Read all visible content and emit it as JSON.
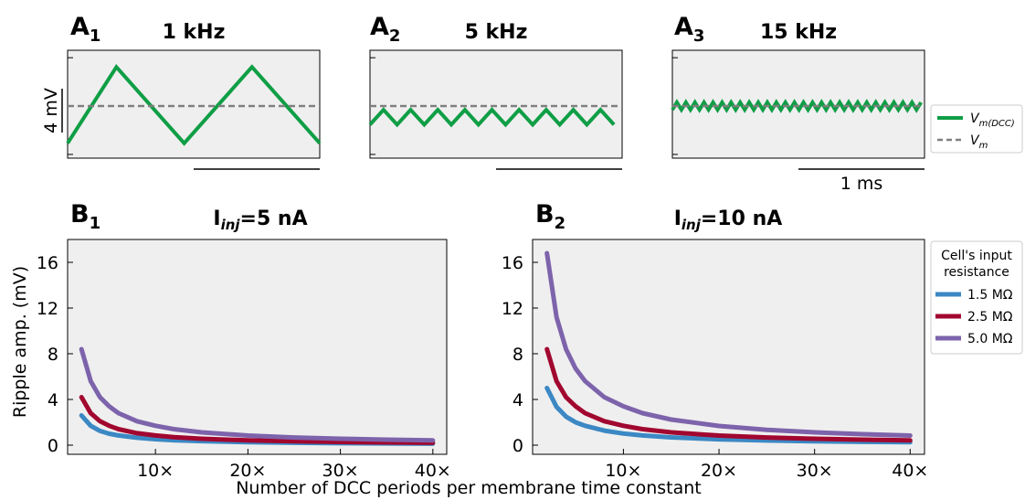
{
  "panels_a": [
    {
      "label": "A",
      "sub": "1",
      "title": "1 kHz"
    },
    {
      "label": "A",
      "sub": "2",
      "title": "5 kHz"
    },
    {
      "label": "A",
      "sub": "3",
      "title": "15 kHz"
    }
  ],
  "scale_bars": {
    "voltage": "4 mV",
    "time": "1 ms"
  },
  "legend_a": {
    "items": [
      {
        "main": "V",
        "sub": "m(DCC)",
        "color": "#0f9e45",
        "style": "solid"
      },
      {
        "main": "V",
        "sub": "m",
        "color": "#7f7f7f",
        "style": "dashed"
      }
    ]
  },
  "panels_b": [
    {
      "label": "B",
      "sub": "1",
      "title_main": "I",
      "title_sub": "inj",
      "title_rest": "=5 nA"
    },
    {
      "label": "B",
      "sub": "2",
      "title_main": "I",
      "title_sub": "inj",
      "title_rest": "=10 nA"
    }
  ],
  "legend_b": {
    "title_line1": "Cell's input",
    "title_line2": "resistance",
    "items": [
      {
        "label": "1.5 MΩ",
        "color": "#3b88c4"
      },
      {
        "label": "2.5 MΩ",
        "color": "#a1072f"
      },
      {
        "label": "5.0 MΩ",
        "color": "#7d63ab"
      }
    ]
  },
  "xlabel": "Number of DCC periods per membrane time constant",
  "ylabel": "Ripple amp. (mV)",
  "chart_data": [
    {
      "type": "line",
      "panel": "A1",
      "title": "1 kHz",
      "series": [
        {
          "name": "Vm(DCC)",
          "x": [
            0,
            0.36,
            0.86,
            1.36,
            1.86
          ],
          "y": [
            -2.0,
            2.1,
            -2.0,
            2.1,
            -2.0
          ]
        },
        {
          "name": "Vm",
          "x": [
            0,
            1.86
          ],
          "y": [
            0,
            0
          ]
        }
      ],
      "xlim": [
        0,
        1.86
      ],
      "ylim": [
        -2.8,
        3.0
      ]
    },
    {
      "type": "line",
      "panel": "A2",
      "title": "5 kHz",
      "series": [
        {
          "name": "Vm(DCC)",
          "wave": "sawtooth",
          "period_ms": 0.2,
          "min": -1.0,
          "max": -0.2
        },
        {
          "name": "Vm",
          "x": [
            0,
            1.86
          ],
          "y": [
            0,
            0
          ]
        }
      ],
      "xlim": [
        0,
        1.86
      ],
      "ylim": [
        -2.8,
        3.0
      ]
    },
    {
      "type": "line",
      "panel": "A3",
      "title": "15 kHz",
      "series": [
        {
          "name": "Vm(DCC)",
          "wave": "sawtooth",
          "period_ms": 0.0667,
          "min": -0.2,
          "max": 0.2
        },
        {
          "name": "Vm",
          "x": [
            0,
            1.86
          ],
          "y": [
            0,
            0
          ]
        }
      ],
      "xlim": [
        0,
        1.86
      ],
      "ylim": [
        -2.8,
        3.0
      ]
    },
    {
      "type": "line",
      "panel": "B1",
      "title": "Iinj=5 nA",
      "x": [
        2,
        3,
        4,
        5,
        6,
        8,
        10,
        12,
        15,
        20,
        25,
        30,
        35,
        40
      ],
      "series": [
        {
          "name": "1.5 MΩ",
          "y": [
            2.6,
            1.7,
            1.25,
            1.0,
            0.85,
            0.65,
            0.52,
            0.43,
            0.35,
            0.26,
            0.21,
            0.17,
            0.15,
            0.13
          ]
        },
        {
          "name": "2.5 MΩ",
          "y": [
            4.2,
            2.8,
            2.1,
            1.7,
            1.4,
            1.05,
            0.85,
            0.7,
            0.56,
            0.42,
            0.34,
            0.28,
            0.24,
            0.21
          ]
        },
        {
          "name": "5.0 MΩ",
          "y": [
            8.4,
            5.6,
            4.2,
            3.4,
            2.8,
            2.1,
            1.7,
            1.4,
            1.12,
            0.84,
            0.67,
            0.56,
            0.48,
            0.42
          ]
        }
      ],
      "xticks": [
        10,
        20,
        30,
        40
      ],
      "xticklabels": [
        "10×",
        "20×",
        "30×",
        "40×"
      ],
      "yticks": [
        0,
        4,
        8,
        12,
        16
      ],
      "xlim": [
        0.5,
        41.5
      ],
      "ylim": [
        -0.8,
        18
      ]
    },
    {
      "type": "line",
      "panel": "B2",
      "title": "Iinj=10 nA",
      "x": [
        2,
        3,
        4,
        5,
        6,
        8,
        10,
        12,
        15,
        20,
        25,
        30,
        35,
        40
      ],
      "series": [
        {
          "name": "1.5 MΩ",
          "y": [
            5.0,
            3.35,
            2.5,
            2.0,
            1.7,
            1.27,
            1.02,
            0.85,
            0.68,
            0.51,
            0.41,
            0.34,
            0.29,
            0.26
          ]
        },
        {
          "name": "2.5 MΩ",
          "y": [
            8.4,
            5.6,
            4.2,
            3.4,
            2.8,
            2.1,
            1.7,
            1.4,
            1.12,
            0.84,
            0.67,
            0.56,
            0.48,
            0.42
          ]
        },
        {
          "name": "5.0 MΩ",
          "y": [
            16.8,
            11.2,
            8.4,
            6.7,
            5.6,
            4.2,
            3.4,
            2.8,
            2.24,
            1.68,
            1.34,
            1.12,
            0.96,
            0.84
          ]
        }
      ],
      "xticks": [
        10,
        20,
        30,
        40
      ],
      "xticklabels": [
        "10×",
        "20×",
        "30×",
        "40×"
      ],
      "yticks": [
        0,
        4,
        8,
        12,
        16
      ],
      "xlim": [
        0.5,
        41.5
      ],
      "ylim": [
        -0.8,
        18
      ]
    }
  ]
}
